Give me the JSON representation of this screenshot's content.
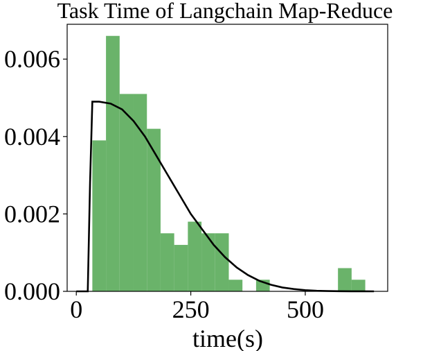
{
  "chart_data": {
    "type": "bar",
    "title": "Task Time of Langchain Map-Reduce",
    "xlabel": "time(s)",
    "ylabel": "",
    "xlim": [
      -20,
      680
    ],
    "ylim": [
      0,
      0.0069
    ],
    "xticks": [
      {
        "value": 0,
        "label": "0"
      },
      {
        "value": 250,
        "label": "250"
      },
      {
        "value": 500,
        "label": "500"
      }
    ],
    "yticks": [
      {
        "value": 0,
        "label": "0.000"
      },
      {
        "value": 0.002,
        "label": "0.002"
      },
      {
        "value": 0.004,
        "label": "0.004"
      },
      {
        "value": 0.006,
        "label": "0.006"
      }
    ],
    "histogram": {
      "color": "#6ab36a",
      "bin_edges": [
        35,
        64.8,
        94.6,
        124.4,
        154.2,
        184,
        213.8,
        243.6,
        273.4,
        303.2,
        333,
        362.8,
        392.6,
        422.4,
        452.2,
        482,
        511.8,
        541.6,
        571.4,
        601.2,
        631
      ],
      "densities": [
        0.0039,
        0.0066,
        0.0051,
        0.0051,
        0.0042,
        0.0015,
        0.0012,
        0.0018,
        0.0015,
        0.0015,
        0.0003,
        0.0,
        0.0003,
        0.0,
        0.0,
        0.0,
        0.0,
        0.0,
        0.0006,
        0.0003
      ]
    },
    "fit_curve": {
      "color": "#000000",
      "x": [
        0,
        25,
        30,
        35,
        50,
        75,
        100,
        125,
        150,
        175,
        200,
        225,
        250,
        275,
        300,
        325,
        350,
        375,
        400,
        425,
        450,
        475,
        500,
        525,
        550,
        575,
        600,
        625,
        650
      ],
      "y": [
        0,
        0,
        0.0028,
        0.0049,
        0.0049,
        0.00485,
        0.0047,
        0.0044,
        0.004,
        0.0035,
        0.003,
        0.0025,
        0.002,
        0.0016,
        0.0012,
        0.00088,
        0.00062,
        0.00042,
        0.00027,
        0.00017,
        0.0001,
        6e-05,
        3e-05,
        1.5e-05,
        7e-06,
        3e-06,
        1e-06,
        5e-07,
        0
      ]
    }
  }
}
